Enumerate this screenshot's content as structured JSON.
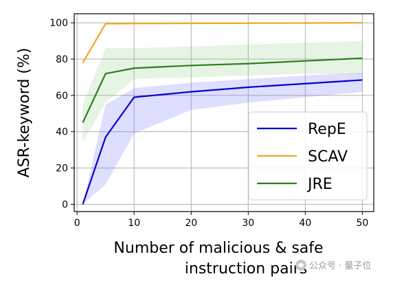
{
  "chart_data": {
    "type": "line",
    "title": "",
    "xlabel_lines": [
      "Number of malicious & safe",
      "instruction pairs"
    ],
    "ylabel": "ASR-keyword (%)",
    "xlim": [
      -0.5,
      52
    ],
    "ylim": [
      -4,
      105
    ],
    "x_ticks": [
      0,
      10,
      20,
      30,
      40,
      50
    ],
    "y_ticks": [
      0,
      20,
      40,
      60,
      80,
      100
    ],
    "grid": true,
    "legend_position": "lower-right",
    "series": [
      {
        "name": "RepE",
        "color": "#0000cc",
        "band_color": "#6b6bff",
        "x": [
          1,
          5,
          10,
          20,
          30,
          40,
          50
        ],
        "y": [
          0,
          37,
          59,
          62,
          64.5,
          66.5,
          68.5
        ],
        "lower": [
          0,
          11,
          39,
          52,
          56,
          59,
          62
        ],
        "upper": [
          0,
          55,
          64,
          67,
          69,
          71,
          72.5
        ]
      },
      {
        "name": "SCAV",
        "color": "#f5a623",
        "band_color": "#f5c26b",
        "x": [
          1,
          5,
          10,
          20,
          30,
          40,
          50
        ],
        "y": [
          78,
          99.5,
          99.6,
          99.7,
          99.8,
          99.9,
          100
        ],
        "lower": [
          77,
          99,
          99.2,
          99.3,
          99.4,
          99.5,
          99.6
        ],
        "upper": [
          79,
          100,
          100,
          100,
          100,
          100,
          100
        ]
      },
      {
        "name": "JRE",
        "color": "#2e7d1e",
        "band_color": "#8fce7f",
        "x": [
          1,
          5,
          10,
          20,
          30,
          40,
          50
        ],
        "y": [
          45,
          72,
          75,
          76.5,
          77.5,
          79,
          80.5
        ],
        "lower": [
          34,
          56,
          69,
          70,
          71,
          72,
          71.5
        ],
        "upper": [
          55,
          86,
          86,
          87,
          88,
          89,
          90
        ]
      }
    ]
  },
  "watermark": {
    "text": "公众号 · 量子位",
    "icon": "wechat-icon"
  }
}
